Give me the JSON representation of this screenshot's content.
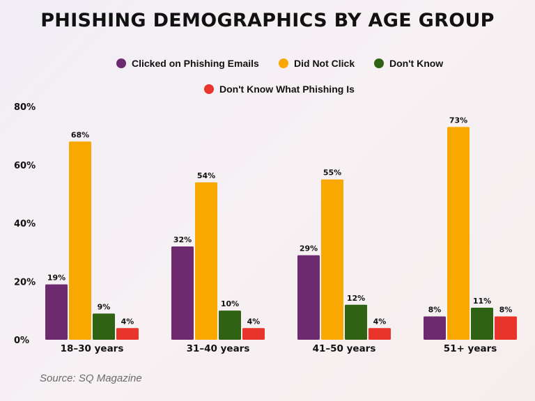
{
  "chart_data": {
    "type": "bar",
    "title": "PHISHING DEMOGRAPHICS BY AGE GROUP",
    "categories": [
      "18–30 years",
      "31–40 years",
      "41–50 years",
      "51+ years"
    ],
    "series": [
      {
        "name": "Clicked on Phishing Emails",
        "color": "#6e2a6f",
        "values": [
          19,
          32,
          29,
          8
        ]
      },
      {
        "name": "Did Not Click",
        "color": "#f8a800",
        "values": [
          68,
          54,
          55,
          73
        ]
      },
      {
        "name": "Don't Know",
        "color": "#2f6313",
        "values": [
          9,
          10,
          12,
          11
        ]
      },
      {
        "name": "Don't Know What Phishing Is",
        "color": "#e8342b",
        "values": [
          4,
          4,
          4,
          8
        ]
      }
    ],
    "ylim": [
      0,
      80
    ],
    "yticks": [
      "0%",
      "20%",
      "40%",
      "60%",
      "80%"
    ],
    "value_suffix": "%",
    "grid": false,
    "legend_position": "top",
    "source": "Source: SQ Magazine"
  }
}
